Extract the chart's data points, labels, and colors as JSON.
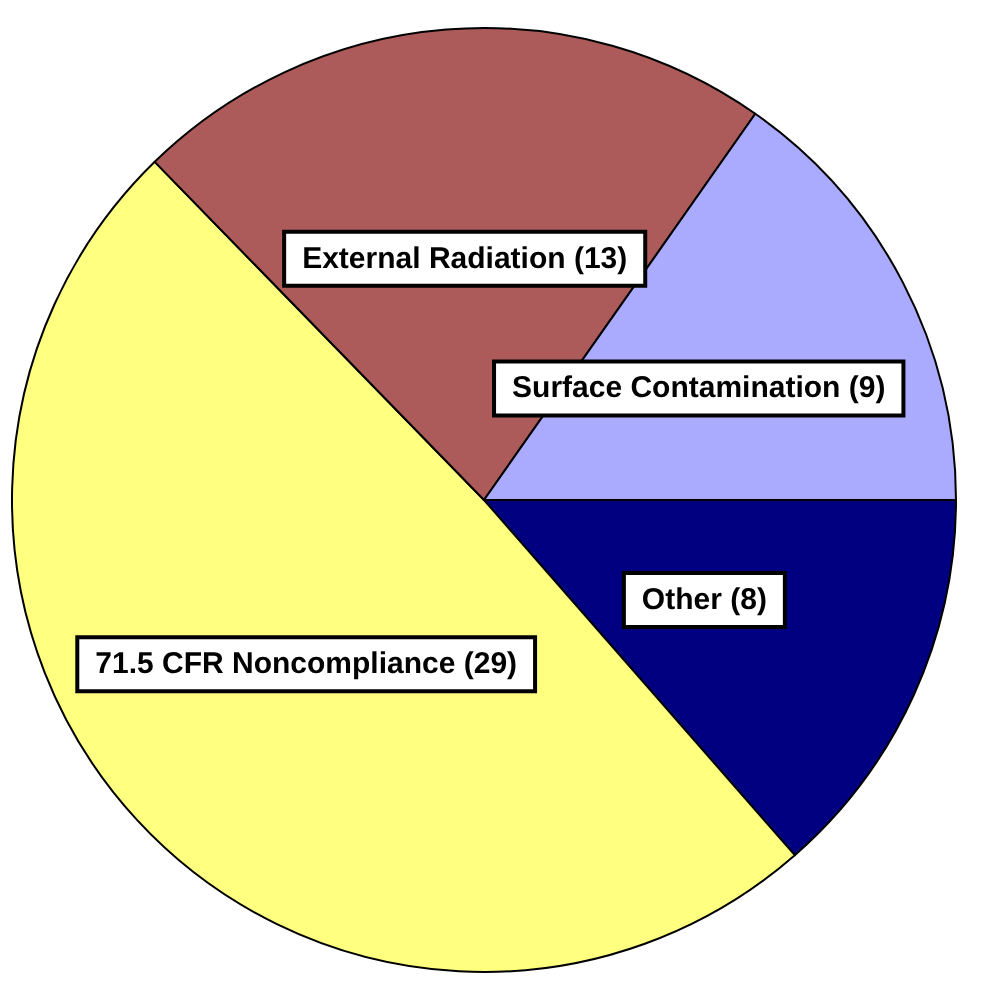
{
  "chart_data": {
    "type": "pie",
    "categories": [
      "Other",
      "71.5 CFR Noncompliance",
      "External Radiation",
      "Surface Contamination"
    ],
    "values": [
      8,
      29,
      13,
      9
    ],
    "colors": [
      "#000080",
      "#ffff80",
      "#ad5a5a",
      "#aaaaff"
    ],
    "value_labels": [
      "(8)",
      "(29)",
      "(13)",
      "(9)"
    ]
  }
}
